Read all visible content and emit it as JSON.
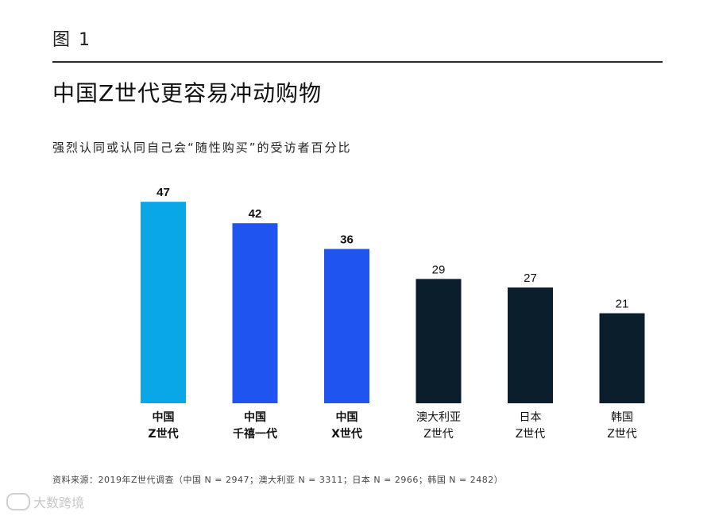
{
  "figure_label": "图 1",
  "title": "中国Z世代更容易冲动购物",
  "subtitle": "强烈认同或认同自己会“随性购买”的受访者百分比",
  "source": "资料来源：2019年Z世代调查（中国 N = 2947；澳大利亚 N = 3311；日本 N = 2966；韩国 N = 2482）",
  "watermark": "大数跨境",
  "colors": {
    "light_blue": "#0aa7e6",
    "blue": "#1f54f0",
    "dark": "#0b1e2b"
  },
  "chart_data": {
    "type": "bar",
    "title": "中国Z世代更容易冲动购物",
    "ylabel": "",
    "ylim": [
      0,
      50
    ],
    "categories": [
      [
        "中国",
        "Z世代"
      ],
      [
        "中国",
        "千禧一代"
      ],
      [
        "中国",
        "X世代"
      ],
      [
        "澳大利亚",
        "Z世代"
      ],
      [
        "日本",
        "Z世代"
      ],
      [
        "韩国",
        "Z世代"
      ]
    ],
    "values": [
      47,
      42,
      36,
      29,
      27,
      21
    ],
    "bar_colors": [
      "#0aa7e6",
      "#1f54f0",
      "#1f54f0",
      "#0b1e2b",
      "#0b1e2b",
      "#0b1e2b"
    ],
    "bold_labels": [
      true,
      true,
      true,
      false,
      false,
      false
    ]
  }
}
